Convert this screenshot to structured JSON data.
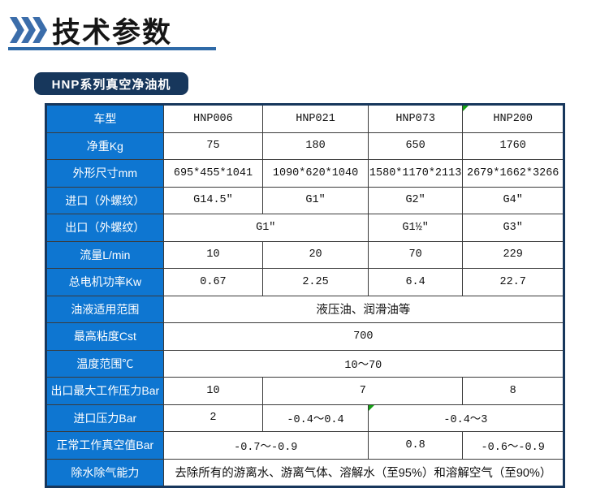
{
  "header": {
    "title": "技术参数",
    "chevron_color": "#3b6daa",
    "underline_color": "#2f6aa7"
  },
  "badge": {
    "label": "HNP系列真空净油机",
    "bg": "#17375c"
  },
  "table": {
    "accent_blue": "#0e76d1",
    "frame_color": "#17375c",
    "marker_color": "#15a015",
    "columns": [
      144,
      122,
      129,
      116,
      124
    ],
    "rows": [
      {
        "label": "车型",
        "cells": [
          {
            "text": "HNP006"
          },
          {
            "text": "HNP021"
          },
          {
            "text": "HNP073"
          },
          {
            "text": "HNP200",
            "marker": true
          }
        ]
      },
      {
        "label": "净重Kg",
        "cells": [
          {
            "text": "75"
          },
          {
            "text": "180"
          },
          {
            "text": "650"
          },
          {
            "text": "1760"
          }
        ]
      },
      {
        "label": "外形尺寸mm",
        "cells": [
          {
            "text": "695*455*1041"
          },
          {
            "text": "1090*620*1040"
          },
          {
            "text": "1580*1170*2113"
          },
          {
            "text": "2679*1662*3266"
          }
        ]
      },
      {
        "label": "进口（外螺纹）",
        "cells": [
          {
            "text": "G14.5″"
          },
          {
            "text": "G1″"
          },
          {
            "text": "G2″"
          },
          {
            "text": "G4″"
          }
        ]
      },
      {
        "label": "出口（外螺纹）",
        "cells": [
          {
            "text": "G1″",
            "span": 2
          },
          {
            "text": "G1½″"
          },
          {
            "text": "G3″"
          }
        ]
      },
      {
        "label": "流量L/min",
        "cells": [
          {
            "text": "10"
          },
          {
            "text": "20"
          },
          {
            "text": "70"
          },
          {
            "text": "229"
          }
        ]
      },
      {
        "label": "总电机功率Kw",
        "cells": [
          {
            "text": "0.67"
          },
          {
            "text": "2.25"
          },
          {
            "text": "6.4"
          },
          {
            "text": "22.7"
          }
        ]
      },
      {
        "label": "油液适用范围",
        "cells": [
          {
            "text": "液压油、润滑油等",
            "span": 4,
            "cjk": true
          }
        ]
      },
      {
        "label": "最高粘度Cst",
        "cells": [
          {
            "text": "700",
            "span": 4
          }
        ]
      },
      {
        "label": "温度范围℃",
        "cells": [
          {
            "text": "10～70",
            "span": 4
          }
        ]
      },
      {
        "label": "出口最大工作压力Bar",
        "cells": [
          {
            "text": "10"
          },
          {
            "text": "7",
            "span": 2
          },
          {
            "text": "8"
          }
        ]
      },
      {
        "label": "进口压力Bar",
        "cells": [
          {
            "text": "2"
          },
          {
            "text": "-0.4～0.4"
          },
          {
            "text": "-0.4～3",
            "span": 2,
            "marker": true
          }
        ]
      },
      {
        "label": "正常工作真空值Bar",
        "cells": [
          {
            "text": "-0.7～-0.9",
            "span": 2
          },
          {
            "text": "0.8"
          },
          {
            "text": "-0.6～-0.9"
          }
        ]
      },
      {
        "label": "除水除气能力",
        "cells": [
          {
            "text": "去除所有的游离水、游离气体、溶解水（至95%）和溶解空气（至90%）",
            "span": 4,
            "cjk": true
          }
        ]
      }
    ]
  }
}
